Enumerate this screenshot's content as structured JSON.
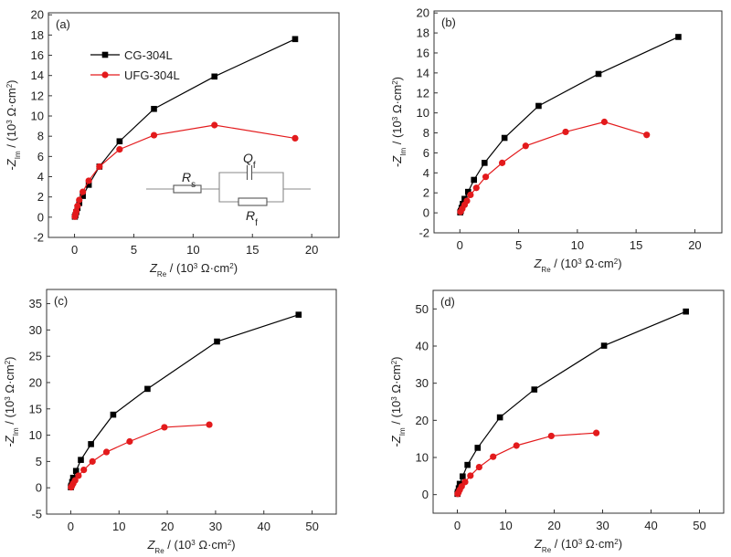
{
  "figure": {
    "series_names": [
      "CG-304L",
      "UFG-304L"
    ],
    "series_colors": {
      "CG-304L": "#000000",
      "UFG-304L": "#e31a1c"
    },
    "circuit": {
      "rs_label": "R",
      "rs_sub": "s",
      "qf_label": "Q",
      "qf_sub": "f",
      "rf_label": "R",
      "rf_sub": "f"
    }
  },
  "chart_data": [
    {
      "type": "line",
      "panel_label": "(a)",
      "title": "",
      "xlabel": "Z_Re / (10^3 Ω·cm^2)",
      "ylabel": "-Z_Im / (10^3 Ω·cm^2)",
      "xlim": [
        -2.2,
        22.3
      ],
      "ylim": [
        -2,
        20.2
      ],
      "xticks": [
        0,
        5,
        10,
        15,
        20
      ],
      "yticks": [
        -2,
        0,
        2,
        4,
        6,
        8,
        10,
        12,
        14,
        16,
        18,
        20
      ],
      "legend": "upper-left",
      "has_circuit_inset": true,
      "series": [
        {
          "name": "CG-304L",
          "marker": "square",
          "x": [
            0.03,
            0.08,
            0.15,
            0.25,
            0.4,
            0.7,
            1.2,
            2.1,
            3.8,
            6.7,
            11.8,
            18.6
          ],
          "y": [
            0.05,
            0.2,
            0.5,
            0.9,
            1.4,
            2.1,
            3.2,
            5.0,
            7.5,
            10.7,
            13.9,
            17.6
          ]
        },
        {
          "name": "UFG-304L",
          "marker": "circle",
          "x": [
            0.03,
            0.08,
            0.15,
            0.25,
            0.4,
            0.7,
            1.2,
            2.1,
            3.8,
            6.7,
            11.8,
            18.6
          ],
          "y": [
            0.05,
            0.3,
            0.6,
            1.1,
            1.7,
            2.5,
            3.6,
            5.0,
            6.7,
            8.1,
            9.1,
            7.8
          ]
        }
      ]
    },
    {
      "type": "line",
      "panel_label": "(b)",
      "title": "",
      "xlabel": "Z_Re / (10^3 Ω·cm^2)",
      "ylabel": "-Z_Im / (10^3 Ω·cm^2)",
      "xlim": [
        -2.2,
        22.3
      ],
      "ylim": [
        -2,
        20.2
      ],
      "xticks": [
        0,
        5,
        10,
        15,
        20
      ],
      "yticks": [
        -2,
        0,
        2,
        4,
        6,
        8,
        10,
        12,
        14,
        16,
        18,
        20
      ],
      "legend": "none",
      "has_circuit_inset": false,
      "series": [
        {
          "name": "CG-304L",
          "marker": "square",
          "x": [
            0.03,
            0.08,
            0.15,
            0.25,
            0.4,
            0.7,
            1.2,
            2.1,
            3.8,
            6.7,
            11.8,
            18.6
          ],
          "y": [
            0.05,
            0.2,
            0.5,
            0.9,
            1.4,
            2.1,
            3.3,
            5.0,
            7.5,
            10.7,
            13.9,
            17.6
          ]
        },
        {
          "name": "UFG-304L",
          "marker": "circle",
          "x": [
            0.05,
            0.2,
            0.4,
            0.6,
            0.9,
            1.4,
            2.2,
            3.6,
            5.6,
            9.0,
            12.3,
            15.9
          ],
          "y": [
            0.1,
            0.4,
            0.8,
            1.2,
            1.8,
            2.5,
            3.6,
            5.0,
            6.7,
            8.1,
            9.1,
            7.8
          ]
        }
      ]
    },
    {
      "type": "line",
      "panel_label": "(c)",
      "title": "",
      "xlabel": "Z_Re / (10^3 Ω·cm^2)",
      "ylabel": "-Z_Im / (10^3 Ω·cm^2)",
      "xlim": [
        -5,
        55
      ],
      "ylim": [
        -5,
        37.7
      ],
      "xticks": [
        0,
        10,
        20,
        30,
        40,
        50
      ],
      "yticks": [
        -5,
        0,
        5,
        10,
        15,
        20,
        25,
        30,
        35
      ],
      "legend": "none",
      "has_circuit_inset": false,
      "series": [
        {
          "name": "CG-304L",
          "marker": "square",
          "x": [
            0.03,
            0.1,
            0.3,
            0.5,
            1.1,
            2.1,
            4.2,
            8.8,
            15.9,
            30.3,
            47.2
          ],
          "y": [
            0.1,
            0.4,
            1.1,
            1.9,
            3.2,
            5.3,
            8.3,
            13.9,
            18.8,
            27.8,
            32.9
          ]
        },
        {
          "name": "UFG-304L",
          "marker": "circle",
          "x": [
            0.08,
            0.25,
            0.5,
            0.9,
            1.6,
            2.7,
            4.5,
            7.4,
            12.2,
            19.4,
            28.7
          ],
          "y": [
            0.1,
            0.4,
            0.8,
            1.4,
            2.3,
            3.4,
            5.0,
            6.8,
            8.8,
            11.5,
            12.0
          ]
        }
      ]
    },
    {
      "type": "line",
      "panel_label": "(d)",
      "title": "",
      "xlabel": "Z_Re / (10^3 Ω·cm^2)",
      "ylabel": "-Z_Im / (10^3 Ω·cm^2)",
      "xlim": [
        -5,
        55
      ],
      "ylim": [
        -5,
        55
      ],
      "xticks": [
        0,
        10,
        20,
        30,
        40,
        50
      ],
      "yticks": [
        0,
        10,
        20,
        30,
        40,
        50
      ],
      "legend": "none",
      "has_circuit_inset": false,
      "series": [
        {
          "name": "CG-304L",
          "marker": "square",
          "x": [
            0.03,
            0.1,
            0.3,
            0.5,
            1.1,
            2.1,
            4.2,
            8.8,
            15.9,
            30.3,
            47.2
          ],
          "y": [
            0.2,
            0.7,
            1.7,
            2.9,
            4.9,
            8.0,
            12.6,
            20.8,
            28.3,
            40.1,
            49.3
          ]
        },
        {
          "name": "UFG-304L",
          "marker": "circle",
          "x": [
            0.08,
            0.25,
            0.5,
            0.9,
            1.6,
            2.7,
            4.5,
            7.4,
            12.2,
            19.4,
            28.7
          ],
          "y": [
            0.2,
            0.6,
            1.3,
            2.2,
            3.4,
            5.1,
            7.4,
            10.2,
            13.2,
            15.8,
            16.6
          ]
        }
      ]
    }
  ]
}
